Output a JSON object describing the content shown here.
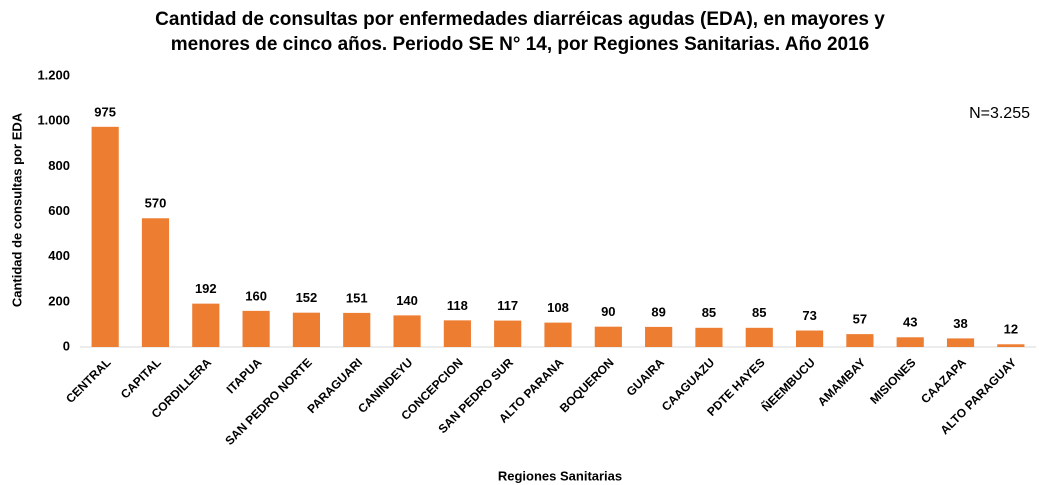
{
  "chart_data": {
    "type": "bar",
    "title": [
      "Cantidad de consultas por enfermedades diarréicas agudas (EDA), en mayores y",
      "menores de cinco años. Periodo SE N° 14, por Regiones Sanitarias. Año 2016"
    ],
    "x_label": "Regiones Sanitarias",
    "y_label": "Cantidad de consultas por EDA",
    "annotation": "N=3.255",
    "categories": [
      "CENTRAL",
      "CAPITAL",
      "CORDILLERA",
      "ITAPUA",
      "SAN PEDRO NORTE",
      "PARAGUARI",
      "CANINDEYU",
      "CONCEPCION",
      "SAN PEDRO SUR",
      "ALTO PARANA",
      "BOQUERON",
      "GUAIRA",
      "CAAGUAZU",
      "PDTE HAYES",
      "ÑEEMBUCU",
      "AMAMBAY",
      "MISIONES",
      "CAAZAPA",
      "ALTO PARAGUAY"
    ],
    "values": [
      975,
      570,
      192,
      160,
      152,
      151,
      140,
      118,
      117,
      108,
      90,
      89,
      85,
      85,
      73,
      57,
      43,
      38,
      12
    ],
    "color": "#ed7d31",
    "ylim": [
      0,
      1200
    ],
    "yticks": [
      0,
      200,
      400,
      600,
      800,
      {
        "value": 1000,
        "label": "1.000"
      },
      {
        "value": 1200,
        "label": "1.200"
      }
    ],
    "grid": false
  }
}
